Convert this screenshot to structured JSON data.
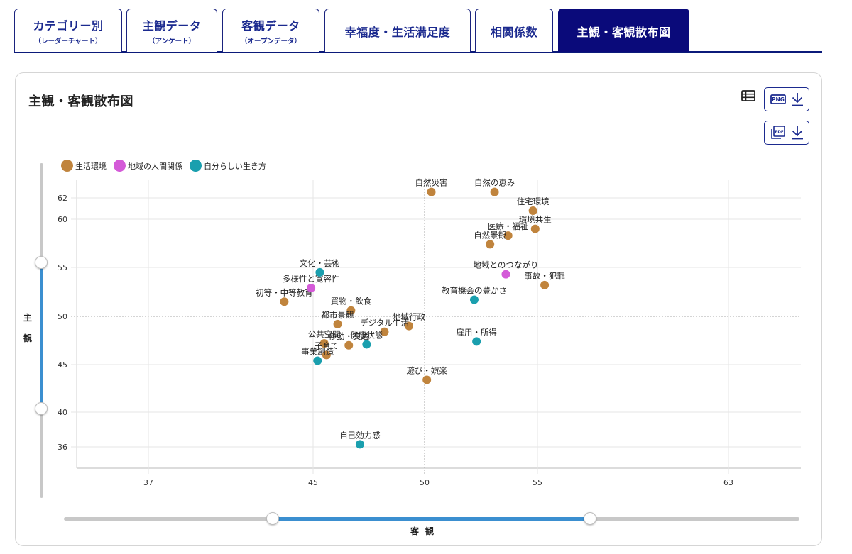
{
  "tabs": [
    {
      "label": "カテゴリー別",
      "sub": "（レーダーチャート）",
      "active": false
    },
    {
      "label": "主観データ",
      "sub": "（アンケート）",
      "active": false
    },
    {
      "label": "客観データ",
      "sub": "（オープンデータ）",
      "active": false
    },
    {
      "label": "幸福度・生活満足度",
      "sub": "",
      "active": false
    },
    {
      "label": "相関係数",
      "sub": "",
      "active": false
    },
    {
      "label": "主観・客観散布図",
      "sub": "",
      "active": true
    }
  ],
  "card": {
    "title": "主観・客観散布図",
    "icons": {
      "table": "table-icon",
      "png_download": "png-download-icon",
      "pdf_download": "pdf-download-icon"
    },
    "png_label": "PNG",
    "pdf_label": "PDF"
  },
  "colors": {
    "tab_active": "#0a0a7a",
    "tab_text": "#1b2a8f",
    "slider_range": "#3b8fd0",
    "生活環境": "#c0843d",
    "地域の人間関係": "#d45ad8",
    "自分らしい生き方": "#1a9fae"
  },
  "sliders": {
    "vertical": {
      "label": "主観",
      "chars": [
        "主",
        "観"
      ]
    },
    "horizontal": {
      "label": "客観",
      "chars": [
        "客",
        "観"
      ]
    }
  },
  "chart_data": {
    "type": "scatter",
    "title": "主観・客観散布図",
    "xlabel": "客観",
    "ylabel": "主観",
    "x_ticks": [
      37,
      45,
      50,
      55,
      63
    ],
    "y_ticks": [
      36,
      40,
      45,
      50,
      55,
      60,
      62
    ],
    "xlim": [
      34,
      66
    ],
    "ylim": [
      34,
      63.5
    ],
    "reference_lines": {
      "x": 50,
      "y": 50
    },
    "grid": true,
    "legend_position": "top-left",
    "legend": [
      "生活環境",
      "地域の人間関係",
      "自分らしい生き方"
    ],
    "series": [
      {
        "name": "生活環境",
        "color": "#c0843d",
        "points": [
          {
            "label": "自然災害",
            "x": 50.3,
            "y": 62.5
          },
          {
            "label": "自然の恵み",
            "x": 53.1,
            "y": 62.5
          },
          {
            "label": "住宅環境",
            "x": 54.8,
            "y": 60.8
          },
          {
            "label": "環境共生",
            "x": 54.9,
            "y": 59.0
          },
          {
            "label": "医療・福祉",
            "x": 53.7,
            "y": 58.3
          },
          {
            "label": "自然景観",
            "x": 52.9,
            "y": 57.4
          },
          {
            "label": "事故・犯罪",
            "x": 55.3,
            "y": 53.2
          },
          {
            "label": "遊び・娯楽",
            "x": 50.1,
            "y": 43.4
          },
          {
            "label": "初等・中等教育",
            "x": 43.6,
            "y": 51.5
          },
          {
            "label": "買物・飲食",
            "x": 46.7,
            "y": 50.6
          },
          {
            "label": "都市景観",
            "x": 46.1,
            "y": 49.2
          },
          {
            "label": "地域行政",
            "x": 49.3,
            "y": 49.0
          },
          {
            "label": "デジタル生活",
            "x": 48.2,
            "y": 48.4
          },
          {
            "label": "公共空間",
            "x": 45.5,
            "y": 47.2
          },
          {
            "label": "移動・交通",
            "x": 46.6,
            "y": 47.0
          },
          {
            "label": "子育て",
            "x": 45.6,
            "y": 46.0
          }
        ]
      },
      {
        "name": "地域の人間関係",
        "color": "#d45ad8",
        "points": [
          {
            "label": "地域とのつながり",
            "x": 53.6,
            "y": 54.3
          },
          {
            "label": "多様性と寛容性",
            "x": 44.9,
            "y": 52.9
          }
        ]
      },
      {
        "name": "自分らしい生き方",
        "color": "#1a9fae",
        "points": [
          {
            "label": "教育機会の豊かさ",
            "x": 52.2,
            "y": 51.7
          },
          {
            "label": "雇用・所得",
            "x": 52.3,
            "y": 47.4
          },
          {
            "label": "自己効力感",
            "x": 47.1,
            "y": 36.3
          },
          {
            "label": "文化・芸術",
            "x": 45.3,
            "y": 54.5
          },
          {
            "label": "健康状態",
            "x": 47.4,
            "y": 47.1
          },
          {
            "label": "事業創造",
            "x": 45.2,
            "y": 45.4
          }
        ]
      }
    ]
  }
}
